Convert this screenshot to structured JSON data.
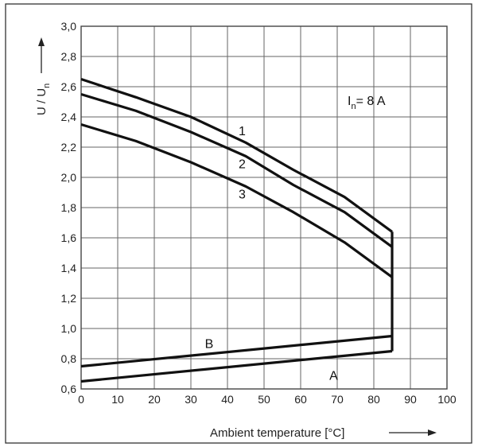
{
  "chart_data": {
    "type": "line",
    "title": "",
    "xlabel": "Ambient temperature [°C]",
    "ylabel": "U / Un",
    "xlim": [
      0,
      100
    ],
    "ylim": [
      0.6,
      3.0
    ],
    "x_ticks": [
      "0",
      "10",
      "20",
      "30",
      "40",
      "50",
      "60",
      "70",
      "80",
      "90",
      "100"
    ],
    "y_ticks": [
      "0,6",
      "0,8",
      "1,0",
      "1,2",
      "1,4",
      "1,6",
      "1,8",
      "2,0",
      "2,2",
      "2,4",
      "2,6",
      "2,8",
      "3,0"
    ],
    "grid": true,
    "series": [
      {
        "name": "1",
        "x": [
          0,
          15,
          30,
          45,
          58,
          72,
          85
        ],
        "y": [
          2.65,
          2.53,
          2.4,
          2.23,
          2.05,
          1.87,
          1.64
        ]
      },
      {
        "name": "2",
        "x": [
          0,
          15,
          30,
          45,
          58,
          72,
          85
        ],
        "y": [
          2.55,
          2.44,
          2.3,
          2.14,
          1.95,
          1.77,
          1.54
        ]
      },
      {
        "name": "3",
        "x": [
          0,
          15,
          30,
          45,
          58,
          72,
          85
        ],
        "y": [
          2.35,
          2.24,
          2.1,
          1.94,
          1.77,
          1.57,
          1.34
        ]
      },
      {
        "name": "B",
        "x": [
          0,
          85
        ],
        "y": [
          0.75,
          0.95
        ]
      },
      {
        "name": "A",
        "x": [
          0,
          85
        ],
        "y": [
          0.65,
          0.85
        ]
      }
    ],
    "vertical_segment": {
      "x": 85,
      "y_from": 0.85,
      "y_to": 1.64
    },
    "annotations": [
      {
        "id": "rated-current",
        "main": "I",
        "sub": "n",
        "rest": "= 8 A",
        "x": 78,
        "y": 2.48
      },
      {
        "id": "curve-1",
        "text": "1",
        "x": 44,
        "y": 2.28
      },
      {
        "id": "curve-2",
        "text": "2",
        "x": 44,
        "y": 2.06
      },
      {
        "id": "curve-3",
        "text": "3",
        "x": 44,
        "y": 1.86
      },
      {
        "id": "curve-b",
        "text": "B",
        "x": 35,
        "y": 0.87
      },
      {
        "id": "curve-a",
        "text": "A",
        "x": 69,
        "y": 0.66
      }
    ]
  }
}
